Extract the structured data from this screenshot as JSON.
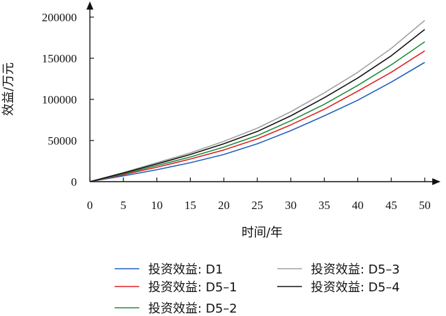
{
  "chart_data": {
    "type": "line",
    "title": "",
    "xlabel": "时间/年",
    "ylabel": "效益/万元",
    "xlim": [
      0,
      50
    ],
    "ylim": [
      0,
      200000
    ],
    "xticks": [
      0,
      5,
      10,
      15,
      20,
      25,
      30,
      35,
      40,
      45,
      50
    ],
    "yticks": [
      0,
      50000,
      100000,
      150000,
      200000
    ],
    "grid": false,
    "legend_position": "bottom",
    "x": [
      0,
      5,
      10,
      15,
      20,
      25,
      30,
      35,
      40,
      45,
      50
    ],
    "series": [
      {
        "name": "投资效益: D1",
        "color": "#1f5fbf",
        "values": [
          0,
          7000,
          14500,
          23000,
          33000,
          46000,
          62000,
          80000,
          99000,
          121000,
          145000
        ]
      },
      {
        "name": "投资效益: D5–1",
        "color": "#e02020",
        "values": [
          0,
          8500,
          17500,
          27500,
          38500,
          52000,
          69000,
          88000,
          110000,
          133000,
          159000
        ]
      },
      {
        "name": "投资效益: D5–2",
        "color": "#1a8a3a",
        "values": [
          0,
          9500,
          19500,
          30000,
          42000,
          56000,
          74000,
          94000,
          117000,
          142000,
          170000
        ]
      },
      {
        "name": "投资效益: D5–3",
        "color": "#a0a0a0",
        "values": [
          0,
          11000,
          23000,
          35000,
          49000,
          65000,
          85000,
          108000,
          133000,
          162000,
          196000
        ]
      },
      {
        "name": "投资效益: D5–4",
        "color": "#111111",
        "values": [
          0,
          10500,
          21500,
          33000,
          46000,
          61000,
          80000,
          102000,
          126000,
          153000,
          185000
        ]
      }
    ]
  }
}
